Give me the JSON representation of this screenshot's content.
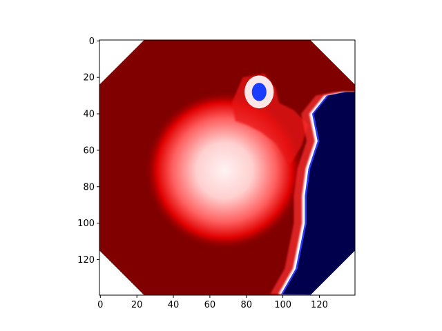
{
  "chart_data": {
    "type": "heatmap",
    "title": "",
    "xlabel": "",
    "ylabel": "",
    "image_extent": {
      "cols": 140,
      "rows": 140
    },
    "xlim": [
      -0.5,
      139.5
    ],
    "ylim": [
      139.5,
      -0.5
    ],
    "y_axis_inverted": true,
    "x_ticks": [
      0,
      20,
      40,
      60,
      80,
      100,
      120
    ],
    "x_tick_labels": [
      "0",
      "20",
      "40",
      "60",
      "80",
      "100",
      "120"
    ],
    "y_ticks": [
      0,
      20,
      40,
      60,
      80,
      100,
      120
    ],
    "y_tick_labels": [
      "0",
      "20",
      "40",
      "60",
      "80",
      "100",
      "120"
    ],
    "colormap": "seismic",
    "colorbar": false,
    "mask": {
      "shape": "octagon",
      "chamfer": 24,
      "outside_color": "#ffffff"
    },
    "regions": [
      {
        "name": "dark-red background",
        "color": "#800000"
      },
      {
        "name": "bright spot",
        "center": [
          68,
          71
        ],
        "radius": 23,
        "color_center": "#ffe8e8"
      },
      {
        "name": "small blue spot",
        "center": [
          87,
          28
        ],
        "radius": 4,
        "color": "#1a3cff"
      },
      {
        "name": "dark-blue right region",
        "boundary_x_by_row": [
          [
            28,
            135
          ],
          [
            30,
            125
          ],
          [
            40,
            117
          ],
          [
            55,
            120
          ],
          [
            70,
            115
          ],
          [
            85,
            113
          ],
          [
            100,
            113
          ],
          [
            115,
            110
          ],
          [
            125,
            108
          ],
          [
            139,
            100
          ]
        ],
        "color": "#00004c"
      }
    ]
  },
  "colors": {
    "background": "#ffffff",
    "dark_red": "#800000",
    "dark_blue": "#00004c",
    "axis": "#000000"
  }
}
